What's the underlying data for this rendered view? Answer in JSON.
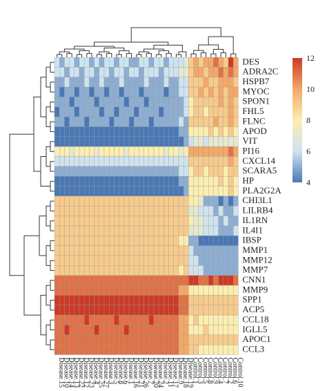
{
  "chart_data": {
    "type": "heatmap",
    "title": "",
    "genes": [
      "DES",
      "ADRA2C",
      "HSPB7",
      "MYOC",
      "SPON1",
      "FHL5",
      "FLNC",
      "APOD",
      "VIT",
      "PI16",
      "CXCL14",
      "SCARA5",
      "HP",
      "PLA2G2A",
      "CHI3L1",
      "LILRB4",
      "IL1RN",
      "IL4I1",
      "IBSP",
      "MMP1",
      "MMP12",
      "MMP7",
      "CNN1",
      "MMP9",
      "SPP1",
      "ACP5",
      "CCL18",
      "IGLL5",
      "APOC1",
      "CCL3"
    ],
    "samples": [
      "Disease.15",
      "Disease.10",
      "Disease.14",
      "Disease.13",
      "Disease.22",
      "Disease.12",
      "Disease.23",
      "Disease.4",
      "Disease.25",
      "Disease.27",
      "Disease.3",
      "Disease.5",
      "Disease.8",
      "Disease.6",
      "Disease.1",
      "Disease.16",
      "Disease.21",
      "Disease.26",
      "Disease.7",
      "Disease.20",
      "Disease.24",
      "Disease.2",
      "Disease.11",
      "Disease.17",
      "Disease.9",
      "Disease.18",
      "Disease.19",
      "Control.1",
      "Control.3",
      "Control.5",
      "Control.8",
      "Control.9",
      "Control.4",
      "Control.7",
      "Control.2",
      "Control.6",
      "Control.10"
    ],
    "group_sizes": {
      "Disease": 27,
      "Control": 10
    },
    "values": [
      [
        6,
        5,
        6,
        6,
        5,
        6,
        6,
        5,
        6,
        5,
        6,
        6,
        5,
        6,
        6,
        5,
        5,
        6,
        6,
        5,
        6,
        6,
        5,
        6,
        6,
        6,
        7,
        9,
        10,
        9,
        10,
        10,
        11,
        10,
        9,
        12,
        10
      ],
      [
        6,
        6,
        5,
        6,
        6,
        5,
        6,
        6,
        5,
        6,
        6,
        5,
        6,
        6,
        5,
        6,
        6,
        5,
        6,
        6,
        6,
        5,
        6,
        6,
        6,
        7,
        7,
        9,
        10,
        10,
        9,
        10,
        10,
        11,
        10,
        11,
        10
      ],
      [
        5,
        5,
        6,
        5,
        5,
        5,
        6,
        5,
        5,
        6,
        5,
        5,
        5,
        6,
        5,
        5,
        5,
        5,
        6,
        5,
        5,
        5,
        6,
        5,
        5,
        6,
        6,
        9,
        9,
        9,
        10,
        9,
        9,
        10,
        10,
        10,
        9
      ],
      [
        5,
        4,
        5,
        5,
        4,
        5,
        5,
        4,
        5,
        5,
        4,
        5,
        5,
        4,
        5,
        5,
        5,
        4,
        5,
        5,
        5,
        5,
        4,
        5,
        5,
        6,
        6,
        9,
        9,
        10,
        9,
        10,
        9,
        10,
        9,
        10,
        10
      ],
      [
        5,
        5,
        5,
        4,
        5,
        5,
        5,
        5,
        4,
        5,
        5,
        5,
        5,
        5,
        4,
        5,
        5,
        5,
        4,
        5,
        5,
        5,
        5,
        5,
        5,
        5,
        6,
        8,
        9,
        9,
        9,
        9,
        9,
        10,
        9,
        10,
        9
      ],
      [
        4,
        5,
        5,
        5,
        4,
        5,
        5,
        5,
        5,
        4,
        5,
        5,
        4,
        5,
        5,
        5,
        4,
        5,
        5,
        5,
        5,
        4,
        5,
        5,
        5,
        5,
        6,
        8,
        9,
        9,
        8,
        9,
        9,
        9,
        9,
        10,
        9
      ],
      [
        5,
        5,
        4,
        5,
        5,
        5,
        4,
        5,
        5,
        5,
        5,
        4,
        5,
        5,
        5,
        4,
        5,
        5,
        5,
        4,
        5,
        5,
        5,
        5,
        5,
        6,
        5,
        9,
        9,
        9,
        9,
        9,
        10,
        9,
        9,
        10,
        9
      ],
      [
        4,
        4,
        4,
        4,
        4,
        4,
        4,
        4,
        4,
        4,
        4,
        4,
        4,
        4,
        4,
        4,
        4,
        4,
        4,
        4,
        4,
        4,
        4,
        4,
        4,
        5,
        5,
        8,
        8,
        8,
        8,
        9,
        8,
        9,
        8,
        9,
        8
      ],
      [
        4,
        4,
        4,
        4,
        4,
        4,
        4,
        4,
        4,
        4,
        4,
        4,
        4,
        4,
        4,
        4,
        4,
        4,
        4,
        4,
        4,
        4,
        4,
        4,
        4,
        4,
        5,
        6,
        7,
        7,
        6,
        7,
        7,
        7,
        7,
        7,
        7
      ],
      [
        8,
        8,
        8,
        7,
        8,
        8,
        8,
        8,
        7,
        8,
        8,
        8,
        8,
        8,
        7,
        8,
        8,
        8,
        8,
        8,
        8,
        8,
        7,
        8,
        8,
        7,
        8,
        10,
        10,
        10,
        10,
        10,
        10,
        10,
        10,
        11,
        10
      ],
      [
        6,
        6,
        6,
        6,
        6,
        6,
        6,
        6,
        6,
        6,
        6,
        6,
        6,
        6,
        6,
        6,
        6,
        6,
        6,
        6,
        6,
        6,
        6,
        6,
        6,
        6,
        6,
        9,
        9,
        9,
        9,
        9,
        9,
        9,
        9,
        10,
        9
      ],
      [
        5,
        5,
        5,
        5,
        5,
        5,
        5,
        5,
        5,
        5,
        5,
        5,
        5,
        5,
        5,
        5,
        5,
        5,
        5,
        5,
        5,
        5,
        5,
        5,
        5,
        6,
        6,
        8,
        9,
        9,
        8,
        9,
        9,
        9,
        8,
        9,
        9
      ],
      [
        4,
        4,
        4,
        4,
        4,
        4,
        4,
        4,
        4,
        4,
        4,
        4,
        4,
        4,
        4,
        4,
        4,
        4,
        4,
        4,
        4,
        4,
        4,
        4,
        4,
        5,
        5,
        8,
        8,
        8,
        8,
        8,
        8,
        9,
        8,
        9,
        8
      ],
      [
        4,
        4,
        4,
        4,
        4,
        4,
        4,
        4,
        4,
        4,
        4,
        4,
        4,
        4,
        4,
        4,
        4,
        4,
        4,
        4,
        4,
        4,
        4,
        4,
        4,
        4,
        5,
        8,
        8,
        8,
        8,
        8,
        8,
        8,
        8,
        9,
        8
      ],
      [
        9,
        9,
        9,
        9,
        9,
        9,
        9,
        9,
        9,
        9,
        9,
        9,
        9,
        9,
        9,
        9,
        9,
        9,
        9,
        9,
        9,
        9,
        9,
        9,
        9,
        9,
        9,
        8,
        8,
        7,
        5,
        5,
        5,
        4,
        5,
        4,
        5
      ],
      [
        9,
        9,
        9,
        9,
        9,
        9,
        9,
        9,
        9,
        9,
        9,
        9,
        9,
        9,
        9,
        9,
        9,
        9,
        9,
        9,
        9,
        9,
        9,
        9,
        9,
        9,
        9,
        7,
        7,
        6,
        6,
        6,
        5,
        6,
        5,
        5,
        6
      ],
      [
        9,
        9,
        9,
        9,
        9,
        9,
        9,
        9,
        9,
        9,
        9,
        9,
        9,
        9,
        9,
        9,
        9,
        9,
        9,
        9,
        9,
        9,
        9,
        9,
        9,
        9,
        9,
        8,
        7,
        7,
        6,
        6,
        6,
        5,
        6,
        5,
        5
      ],
      [
        9,
        9,
        9,
        9,
        9,
        9,
        9,
        9,
        9,
        9,
        9,
        9,
        9,
        9,
        9,
        9,
        9,
        9,
        9,
        9,
        9,
        9,
        9,
        9,
        9,
        9,
        9,
        7,
        7,
        7,
        6,
        6,
        6,
        5,
        5,
        5,
        6
      ],
      [
        9,
        9,
        9,
        9,
        9,
        9,
        9,
        9,
        9,
        9,
        9,
        9,
        9,
        9,
        9,
        9,
        9,
        9,
        9,
        9,
        9,
        9,
        9,
        9,
        9,
        8,
        8,
        5,
        5,
        4,
        4,
        4,
        4,
        4,
        4,
        4,
        4
      ],
      [
        9,
        9,
        9,
        9,
        9,
        9,
        9,
        9,
        9,
        9,
        9,
        9,
        9,
        9,
        9,
        9,
        9,
        9,
        9,
        9,
        9,
        9,
        9,
        9,
        9,
        9,
        9,
        6,
        5,
        5,
        5,
        5,
        5,
        5,
        5,
        5,
        5
      ],
      [
        9,
        9,
        9,
        9,
        9,
        9,
        9,
        9,
        9,
        9,
        9,
        9,
        9,
        9,
        9,
        9,
        9,
        9,
        9,
        9,
        9,
        9,
        9,
        9,
        9,
        9,
        9,
        6,
        6,
        5,
        5,
        5,
        5,
        5,
        5,
        5,
        5
      ],
      [
        9,
        9,
        9,
        9,
        9,
        9,
        9,
        9,
        9,
        9,
        9,
        9,
        9,
        9,
        9,
        9,
        9,
        9,
        9,
        9,
        9,
        9,
        9,
        9,
        9,
        8,
        9,
        6,
        6,
        6,
        5,
        5,
        5,
        5,
        5,
        5,
        5
      ],
      [
        11,
        11,
        11,
        11,
        11,
        11,
        11,
        11,
        11,
        11,
        11,
        11,
        11,
        11,
        11,
        11,
        11,
        11,
        11,
        11,
        11,
        11,
        11,
        11,
        11,
        11,
        11,
        12,
        12,
        11,
        11,
        12,
        11,
        12,
        12,
        12,
        11
      ],
      [
        11,
        11,
        11,
        11,
        11,
        11,
        11,
        11,
        11,
        11,
        11,
        11,
        11,
        11,
        11,
        11,
        11,
        11,
        11,
        11,
        11,
        11,
        11,
        11,
        11,
        10,
        10,
        8,
        8,
        8,
        8,
        8,
        8,
        8,
        8,
        8,
        8
      ],
      [
        13,
        13,
        13,
        13,
        13,
        13,
        13,
        13,
        13,
        13,
        13,
        13,
        13,
        13,
        13,
        13,
        13,
        13,
        13,
        13,
        13,
        13,
        12,
        12,
        12,
        11,
        11,
        9,
        9,
        9,
        9,
        9,
        9,
        9,
        9,
        9,
        9
      ],
      [
        12,
        12,
        12,
        12,
        12,
        12,
        12,
        12,
        12,
        12,
        12,
        12,
        12,
        12,
        12,
        12,
        12,
        12,
        12,
        12,
        12,
        12,
        12,
        12,
        12,
        11,
        11,
        9,
        9,
        9,
        9,
        9,
        9,
        9,
        9,
        9,
        9
      ],
      [
        11,
        11,
        11,
        11,
        11,
        11,
        12,
        11,
        11,
        11,
        11,
        11,
        12,
        11,
        11,
        11,
        11,
        11,
        11,
        12,
        11,
        11,
        11,
        11,
        11,
        10,
        10,
        8,
        9,
        8,
        8,
        8,
        8,
        8,
        8,
        8,
        8
      ],
      [
        11,
        11,
        12,
        11,
        11,
        11,
        11,
        11,
        12,
        11,
        11,
        11,
        11,
        11,
        12,
        11,
        11,
        11,
        11,
        11,
        11,
        11,
        11,
        11,
        11,
        10,
        10,
        8,
        8,
        8,
        9,
        8,
        8,
        8,
        8,
        8,
        8
      ],
      [
        11,
        11,
        11,
        11,
        11,
        11,
        11,
        11,
        11,
        11,
        11,
        11,
        11,
        11,
        11,
        11,
        11,
        11,
        11,
        11,
        11,
        11,
        11,
        11,
        11,
        10,
        10,
        9,
        9,
        9,
        9,
        9,
        9,
        9,
        9,
        9,
        9
      ],
      [
        11,
        11,
        11,
        11,
        11,
        11,
        11,
        11,
        11,
        11,
        11,
        11,
        11,
        11,
        11,
        11,
        11,
        11,
        11,
        11,
        11,
        11,
        11,
        11,
        11,
        10,
        10,
        9,
        9,
        8,
        8,
        8,
        8,
        8,
        8,
        8,
        8
      ]
    ],
    "colorbar": {
      "min": 4,
      "max": 12,
      "ticks": [
        4,
        6,
        8,
        10,
        12
      ]
    },
    "colors": {
      "low": "#4a78b5",
      "midlow": "#cfe3ef",
      "mid": "#fbeeb0",
      "midhigh": "#f3a868",
      "high": "#cc3a25"
    }
  }
}
